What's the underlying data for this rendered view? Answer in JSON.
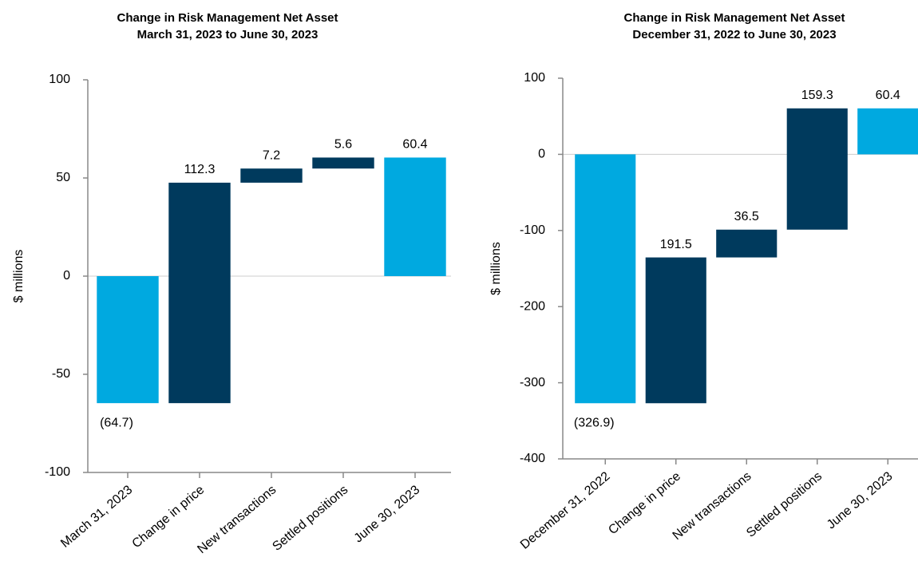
{
  "chart_data": [
    {
      "type": "waterfall",
      "title": "Change in Risk Management Net Asset",
      "subtitle": "March 31, 2023 to June 30, 2023",
      "y_label": "$ millions",
      "categories": [
        "March 31, 2023",
        "Change in price",
        "New transactions",
        "Settled positions",
        "June 30, 2023"
      ],
      "values": [
        -64.7,
        112.3,
        7.2,
        5.6,
        60.4
      ],
      "value_labels": [
        "(64.7)",
        "112.3",
        "7.2",
        "5.6",
        "60.4"
      ],
      "colors": [
        "#00a9e0",
        "#003a5d",
        "#003a5d",
        "#003a5d",
        "#00a9e0"
      ],
      "ylim": [
        -100,
        100
      ],
      "yticks": [
        -100,
        -50,
        0,
        50,
        100
      ],
      "zero_line": true
    },
    {
      "type": "waterfall",
      "title": "Change in Risk Management Net Asset",
      "subtitle": "December 31, 2022 to June 30, 2023",
      "y_label": "$ millions",
      "categories": [
        "December 31, 2022",
        "Change in price",
        "New transactions",
        "Settled positions",
        "June 30, 2023"
      ],
      "values": [
        -326.9,
        191.5,
        36.5,
        159.3,
        60.4
      ],
      "value_labels": [
        "(326.9)",
        "191.5",
        "36.5",
        "159.3",
        "60.4"
      ],
      "colors": [
        "#00a9e0",
        "#003a5d",
        "#003a5d",
        "#003a5d",
        "#00a9e0"
      ],
      "ylim": [
        -400,
        100
      ],
      "yticks": [
        -400,
        -300,
        -200,
        -100,
        0,
        100
      ],
      "zero_line": true
    }
  ]
}
